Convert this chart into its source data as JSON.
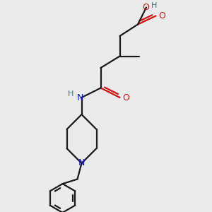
{
  "background_color": "#ebebeb",
  "bond_color": "#1a1a1a",
  "N_color": "#1414cc",
  "O_color": "#cc1414",
  "H_color": "#3a7070",
  "lw": 1.6,
  "dbo": 0.12,
  "figsize": [
    3.0,
    3.0
  ],
  "dpi": 100,
  "xlim": [
    0,
    10
  ],
  "ylim": [
    0,
    10
  ]
}
